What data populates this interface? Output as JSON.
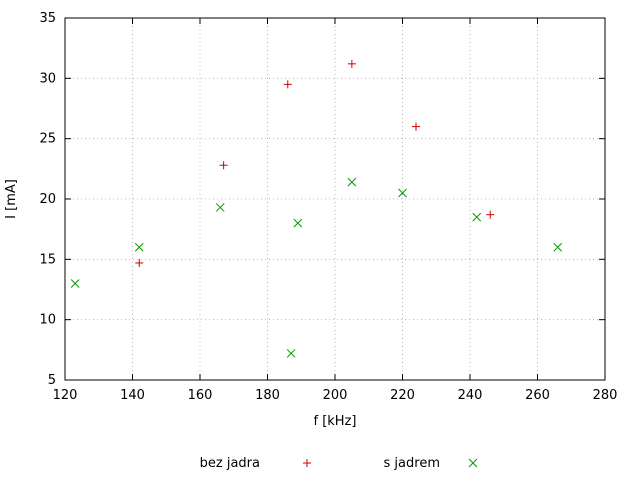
{
  "chart_data": {
    "type": "scatter",
    "title": "",
    "xlabel": "f [kHz]",
    "ylabel": "I [mA]",
    "xlim": [
      120,
      280
    ],
    "ylim": [
      5,
      35
    ],
    "xticks": [
      120,
      140,
      160,
      180,
      200,
      220,
      240,
      260,
      280
    ],
    "yticks": [
      5,
      10,
      15,
      20,
      25,
      30,
      35
    ],
    "grid": true,
    "legend_position": "bottom",
    "colors": {
      "bez_jadra": "#cc0000",
      "s_jadrem": "#009900",
      "grid": "#b8b8b8",
      "axis": "#000000"
    },
    "series": [
      {
        "name": "bez jadra",
        "marker": "plus",
        "color": "#cc0000",
        "points": [
          [
            142,
            14.7
          ],
          [
            167,
            22.8
          ],
          [
            186,
            29.5
          ],
          [
            205,
            31.2
          ],
          [
            224,
            26.0
          ],
          [
            246,
            18.7
          ]
        ]
      },
      {
        "name": "s jadrem",
        "marker": "cross",
        "color": "#009900",
        "points": [
          [
            123,
            13.0
          ],
          [
            142,
            16.0
          ],
          [
            166,
            19.3
          ],
          [
            187,
            7.2
          ],
          [
            189,
            18.0
          ],
          [
            205,
            21.4
          ],
          [
            220,
            20.5
          ],
          [
            242,
            18.5
          ],
          [
            266,
            16.0
          ]
        ]
      }
    ]
  }
}
